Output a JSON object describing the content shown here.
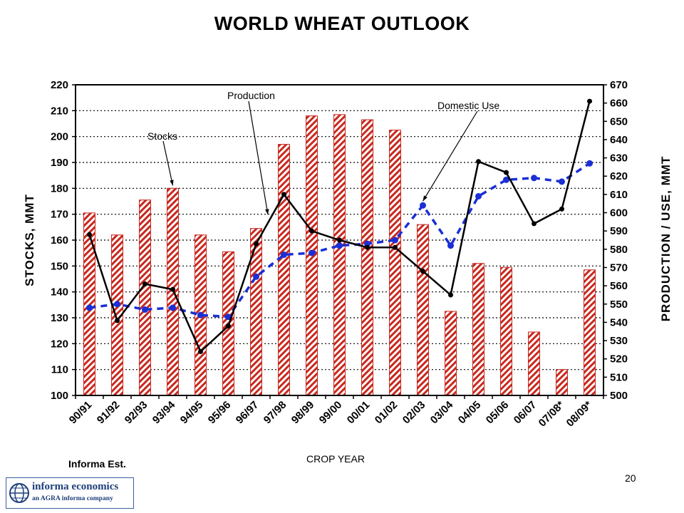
{
  "page": {
    "title": "WORLD WHEAT OUTLOOK",
    "source_note": "Informa Est.",
    "page_number": "20",
    "logo": {
      "name": "informa economics",
      "tagline": "an AGRA informa company"
    }
  },
  "chart_data": {
    "type": "bar",
    "title": "WORLD WHEAT OUTLOOK",
    "xlabel": "CROP YEAR",
    "ylabel": "STOCKS, MMT",
    "y2label": "PRODUCTION / USE, MMT",
    "categories": [
      "90/91",
      "91/92",
      "92/93",
      "93/94",
      "94/95",
      "95/96",
      "96/97",
      "97/98",
      "98/99",
      "99/00",
      "00/01",
      "01/02",
      "02/03",
      "03/04",
      "04/05",
      "05/06",
      "06/07",
      "07/08*",
      "08/09*"
    ],
    "ylim": [
      100,
      220
    ],
    "yticks": [
      100,
      110,
      120,
      130,
      140,
      150,
      160,
      170,
      180,
      190,
      200,
      210,
      220
    ],
    "y2lim": [
      500,
      670
    ],
    "y2ticks": [
      500,
      510,
      520,
      530,
      540,
      550,
      560,
      570,
      580,
      590,
      600,
      610,
      620,
      630,
      640,
      650,
      660,
      670
    ],
    "grid": "horizontal dotted",
    "series": [
      {
        "name": "Stocks",
        "type": "bar",
        "axis": "left",
        "color": "#c8281e",
        "values": [
          170.5,
          162,
          175.5,
          180,
          162,
          155.5,
          164.5,
          197,
          208,
          208.5,
          206.5,
          202.5,
          166,
          132.5,
          151,
          149.5,
          124.5,
          110,
          148.5
        ]
      },
      {
        "name": "Production",
        "type": "line",
        "axis": "right",
        "color": "#000000",
        "values": [
          588,
          541,
          561,
          558,
          524,
          538,
          583,
          610,
          590,
          585,
          581,
          581,
          568,
          555,
          628,
          622,
          594,
          602,
          661
        ]
      },
      {
        "name": "Domestic Use",
        "type": "line",
        "axis": "right",
        "style": "dashed",
        "color": "#1a2fd6",
        "values": [
          548,
          550,
          547,
          548,
          544,
          543,
          565,
          577,
          578,
          582,
          583,
          585,
          604,
          582,
          609,
          618,
          619,
          617,
          627
        ]
      }
    ],
    "annotations": [
      {
        "text": "Stocks",
        "series": "Stocks"
      },
      {
        "text": "Production",
        "series": "Production"
      },
      {
        "text": "Domestic Use",
        "series": "Domestic Use"
      }
    ]
  }
}
